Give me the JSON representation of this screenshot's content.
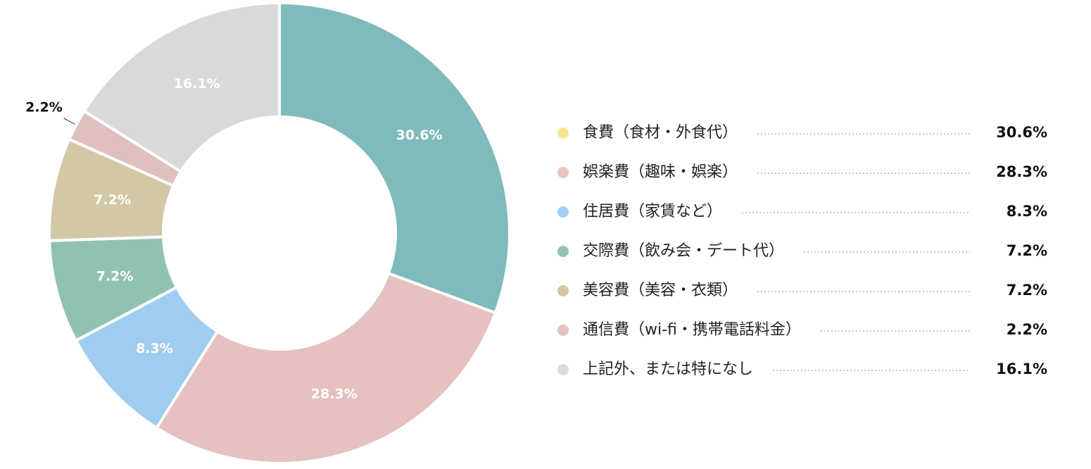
{
  "chart_data": {
    "type": "pie",
    "donut": true,
    "categories": [
      "食費（食材・外食代）",
      "娯楽費（趣味・娯楽）",
      "住居費（家賃など）",
      "交際費（飲み会・デート代）",
      "美容費（美容・衣類）",
      "通信費（wi-fi・携帯電話料金）",
      "上記外、または特になし"
    ],
    "values": [
      30.6,
      28.3,
      8.3,
      7.2,
      7.2,
      2.2,
      16.1
    ],
    "value_labels": [
      "30.6%",
      "28.3%",
      "8.3%",
      "7.2%",
      "7.2%",
      "2.2%",
      "16.1%"
    ],
    "colors": [
      "#80bbbb",
      "#e6c1c0",
      "#9fcdf0",
      "#90c2b3",
      "#d3c8a5",
      "#dfc0bd",
      "#d9d9d9"
    ],
    "legend_colors": [
      "#f7e68f",
      "#e9c3c3",
      "#a0d0f2",
      "#8fc3b2",
      "#d3c8a3",
      "#e2c3be",
      "#dcdcdc"
    ]
  }
}
